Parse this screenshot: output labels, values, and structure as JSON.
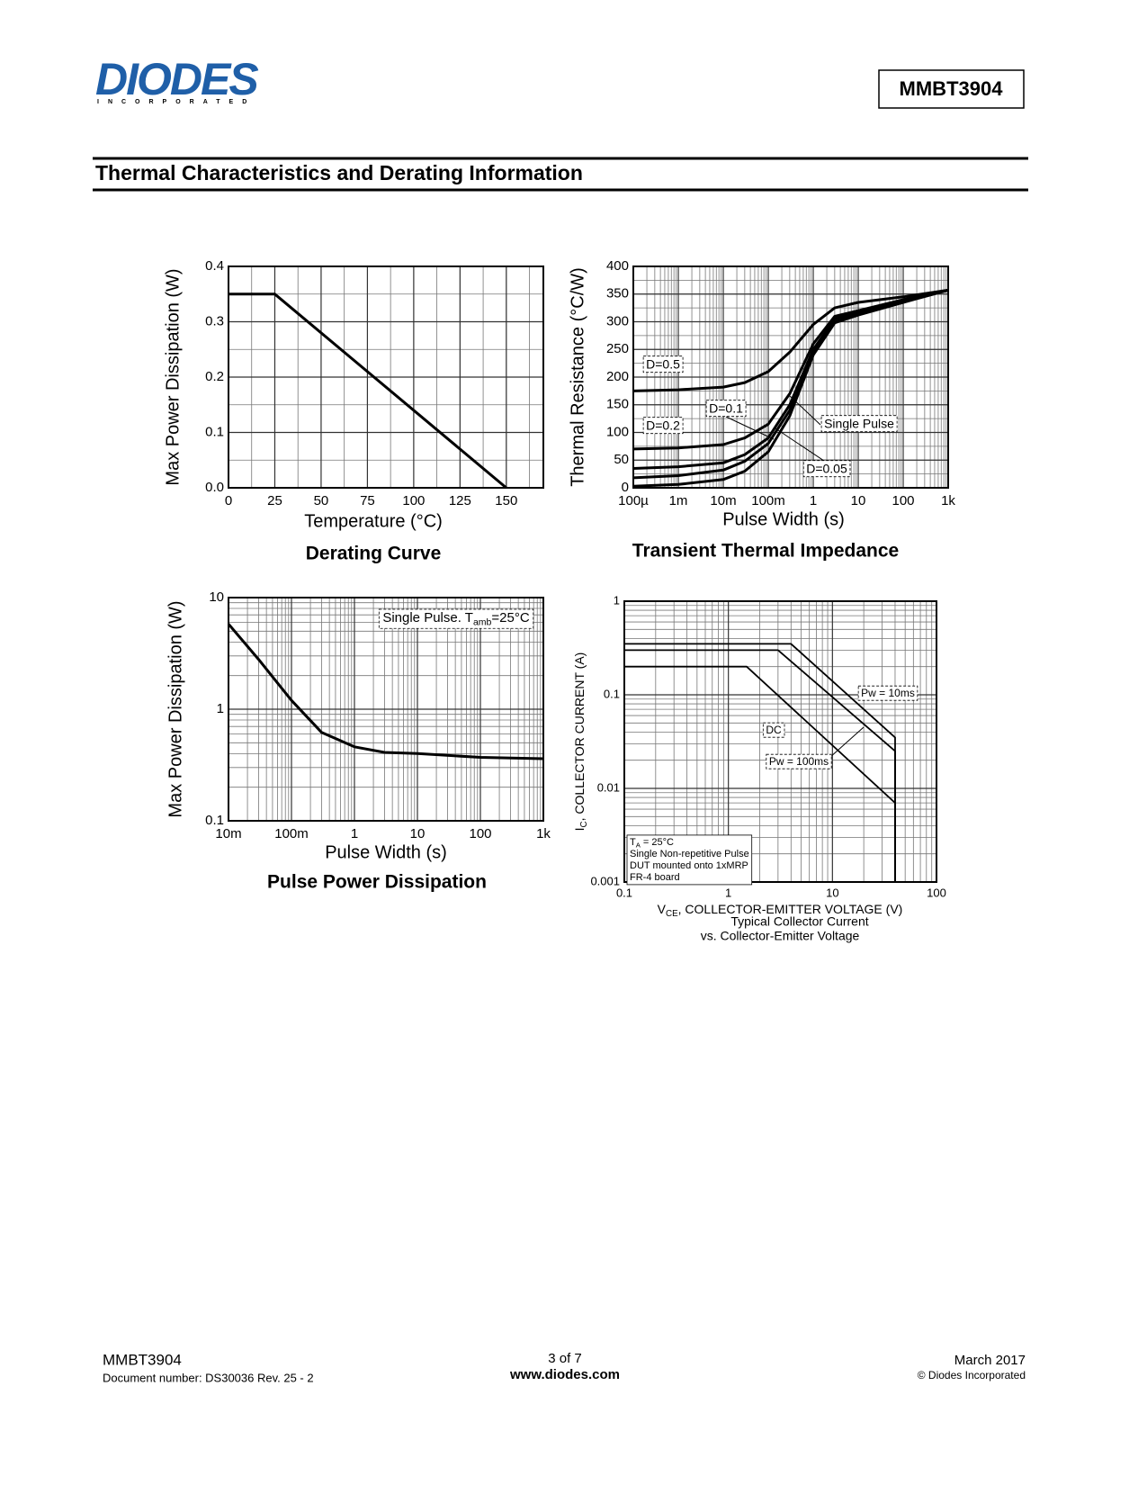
{
  "header": {
    "logo": "DIODES",
    "logo_sub": "INCORPORATED",
    "part": "MMBT3904",
    "section_title": "Thermal Characteristics and Derating Information"
  },
  "footer": {
    "part": "MMBT3904",
    "doc_number": "Document number: DS30036 Rev. 25 - 2",
    "page": "3 of 7",
    "website": "www.diodes.com",
    "date": "March 2017",
    "copyright": "© Diodes Incorporated"
  },
  "chart_data": [
    {
      "type": "line",
      "title": "Derating Curve",
      "x_label": "Temperature (°C)",
      "y_label": "Max Power Dissipation (W)",
      "x": [
        0,
        25,
        150
      ],
      "xlim": [
        0,
        170
      ],
      "xticks": [
        0,
        25,
        50,
        75,
        100,
        125,
        150
      ],
      "ylim": [
        0,
        0.4
      ],
      "yticks": [
        {
          "value": 0,
          "label": "0.0"
        },
        0.1,
        0.2,
        0.3,
        0.4
      ],
      "grid": true,
      "series": [
        {
          "color": "#000000",
          "values": [
            0.35,
            0.35,
            0
          ]
        }
      ]
    },
    {
      "type": "line",
      "title": "Transient Thermal Impedance",
      "x_label": "Pulse Width (s)",
      "y_label": "Thermal Resistance (°C/W)",
      "xscale": "log",
      "x": [
        0.0001,
        0.001,
        0.01,
        0.03,
        0.1,
        0.3,
        1,
        3,
        10,
        100,
        1000
      ],
      "xlim": [
        0.0001,
        1000
      ],
      "xticks": [
        {
          "value": 0.0001,
          "label": "100µ"
        },
        {
          "value": 0.001,
          "label": "1m"
        },
        {
          "value": 0.01,
          "label": "10m"
        },
        {
          "value": 0.1,
          "label": "100m"
        },
        1,
        10,
        100,
        {
          "value": 1000,
          "label": "1k"
        }
      ],
      "ylim": [
        0,
        400
      ],
      "yticks": [
        0,
        50,
        100,
        150,
        200,
        250,
        300,
        350,
        400
      ],
      "grid": true,
      "series": [
        {
          "name": "D=0.5",
          "color": "#000000",
          "values": [
            175,
            177,
            182,
            190,
            210,
            245,
            295,
            325,
            335,
            345,
            357
          ]
        },
        {
          "name": "D=0.2",
          "color": "#000000",
          "values": [
            70,
            72,
            78,
            90,
            115,
            170,
            260,
            310,
            320,
            340,
            357
          ]
        },
        {
          "name": "D=0.1",
          "color": "#000000",
          "values": [
            35,
            38,
            45,
            60,
            90,
            150,
            250,
            305,
            318,
            338,
            357
          ]
        },
        {
          "name": "D=0.05",
          "color": "#000000",
          "values": [
            18,
            22,
            32,
            48,
            80,
            140,
            245,
            300,
            315,
            336,
            357
          ]
        },
        {
          "name": "Single Pulse",
          "color": "#000000",
          "values": [
            3,
            6,
            15,
            30,
            65,
            130,
            240,
            298,
            312,
            335,
            357
          ]
        }
      ]
    },
    {
      "type": "line",
      "title": "Pulse Power Dissipation",
      "x_label": "Pulse Width (s)",
      "y_label": "Max Power Dissipation (W)",
      "annotation": [
        "Single Pulse. T",
        "amb",
        "=25°C"
      ],
      "xscale": "log",
      "yscale": "log",
      "x": [
        0.01,
        0.03,
        0.1,
        0.3,
        1,
        3,
        10,
        100,
        1000
      ],
      "xlim": [
        0.01,
        1000
      ],
      "xticks": [
        {
          "value": 0.01,
          "label": "10m"
        },
        {
          "value": 0.1,
          "label": "100m"
        },
        1,
        10,
        100,
        {
          "value": 1000,
          "label": "1k"
        }
      ],
      "ylim": [
        0.1,
        10
      ],
      "yticks": [
        0.1,
        1,
        10
      ],
      "grid": true,
      "series": [
        {
          "color": "#000000",
          "values": [
            5.8,
            2.8,
            1.2,
            0.62,
            0.46,
            0.41,
            0.4,
            0.37,
            0.36
          ]
        }
      ]
    },
    {
      "type": "line",
      "title": [
        "Typical Collector Current",
        "vs. Collector-Emitter Voltage"
      ],
      "x_label": [
        "V",
        "CE",
        ", COLLECTOR-EMITTER VOLTAGE (V)"
      ],
      "y_label": [
        "I",
        "C",
        ", COLLECTOR CURRENT (A)"
      ],
      "note": {
        "first": [
          "T",
          "A",
          " = 25°C"
        ],
        "lines": [
          "Single Non-repetitive Pulse",
          "DUT mounted onto 1xMRP",
          "FR-4 board"
        ]
      },
      "xscale": "log",
      "yscale": "log",
      "xlim": [
        0.1,
        100
      ],
      "xticks": [
        0.1,
        1,
        10,
        100
      ],
      "ylim": [
        0.001,
        1
      ],
      "yticks": [
        0.001,
        0.01,
        0.1,
        1
      ],
      "grid": true,
      "series": [
        {
          "name": "Pw = 10ms",
          "color": "#000000",
          "x": [
            0.1,
            4,
            40,
            40
          ],
          "values": [
            0.35,
            0.35,
            0.035,
            0.001
          ]
        },
        {
          "name": "DC",
          "color": "#000000",
          "x": [
            0.1,
            1.5,
            40,
            40
          ],
          "values": [
            0.2,
            0.2,
            0.007,
            0.001
          ]
        },
        {
          "name": "Pw = 100ms",
          "color": "#000000",
          "x": [
            0.1,
            3,
            40,
            40
          ],
          "values": [
            0.3,
            0.3,
            0.025,
            0.001
          ]
        }
      ]
    }
  ]
}
